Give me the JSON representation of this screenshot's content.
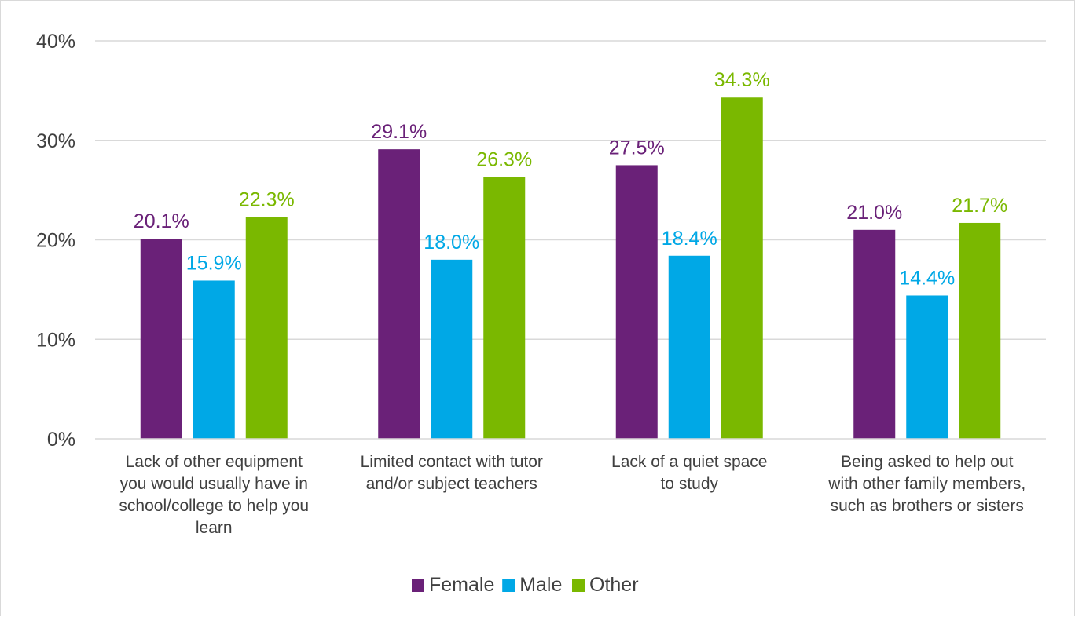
{
  "chart_data": {
    "type": "bar",
    "title": "",
    "xlabel": "",
    "ylabel": "",
    "ylim": [
      0,
      40
    ],
    "yticks": [
      "0%",
      "10%",
      "20%",
      "30%",
      "40%"
    ],
    "ytick_values": [
      0,
      10,
      20,
      30,
      40
    ],
    "grid": true,
    "legend_position": "bottom",
    "categories": [
      [
        "Lack of other equipment",
        "you would usually have in",
        "school/college to help you",
        "learn"
      ],
      [
        "Limited contact with tutor",
        "and/or subject teachers"
      ],
      [
        "Lack of a quiet space",
        "to study"
      ],
      [
        "Being asked to help out",
        "with other family members,",
        "such as brothers or sisters"
      ]
    ],
    "series": [
      {
        "name": "Female",
        "color": "#6a2178",
        "values": [
          20.1,
          29.1,
          27.5,
          21.0
        ],
        "labels": [
          "20.1%",
          "29.1%",
          "27.5%",
          "21.0%"
        ]
      },
      {
        "name": "Male",
        "color": "#00a8e6",
        "values": [
          15.9,
          18.0,
          18.4,
          14.4
        ],
        "labels": [
          "15.9%",
          "18.0%",
          "18.4%",
          "14.4%"
        ]
      },
      {
        "name": "Other",
        "color": "#7ab800",
        "values": [
          22.3,
          26.3,
          34.3,
          21.7
        ],
        "labels": [
          "22.3%",
          "26.3%",
          "34.3%",
          "21.7%"
        ]
      }
    ]
  }
}
